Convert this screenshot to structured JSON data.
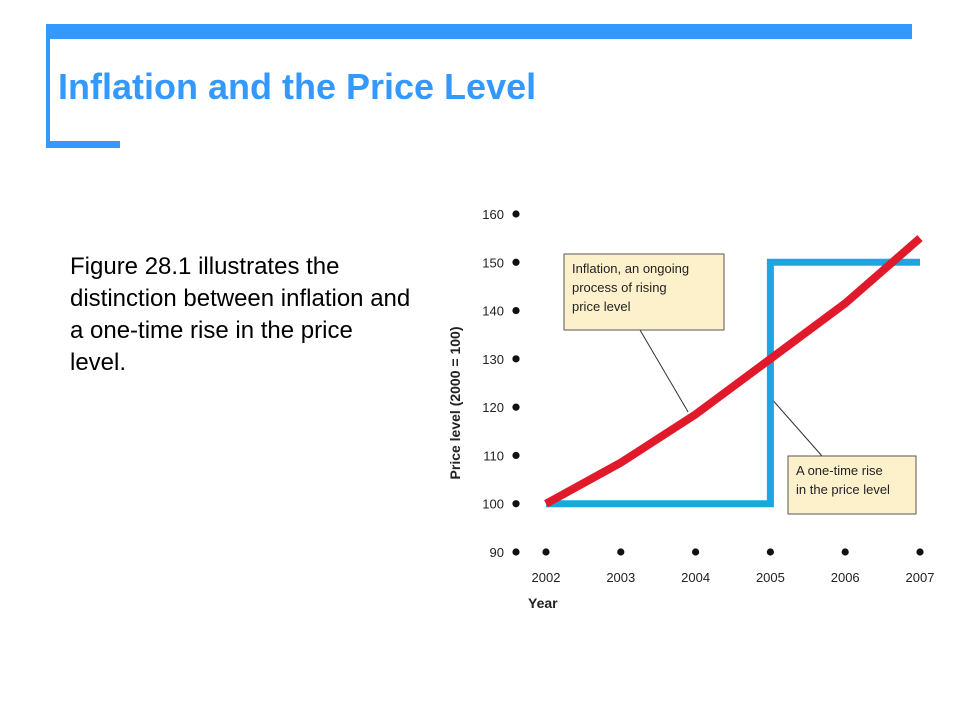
{
  "slide": {
    "title": "Inflation and the Price Level",
    "body": "Figure 28.1 illustrates the distinction between inflation and a one-time rise in the price level."
  },
  "colors": {
    "accent": "#3399ff",
    "inflation_line": "#e0192b",
    "one_time_line": "#1aa7e0",
    "callout_fill": "#fdf1cc"
  },
  "chart_data": {
    "type": "line",
    "xlabel": "Year",
    "ylabel": "Price level (2000 = 100)",
    "x_ticks": [
      2002,
      2003,
      2004,
      2005,
      2006,
      2007
    ],
    "y_ticks": [
      90,
      100,
      110,
      120,
      130,
      140,
      150,
      160
    ],
    "xlim": [
      2002,
      2007
    ],
    "ylim": [
      90,
      160
    ],
    "series": [
      {
        "color": "#e0192b",
        "x": [
          2002,
          2003,
          2004,
          2005,
          2006,
          2007
        ],
        "y": [
          100,
          108.5,
          118.5,
          130,
          141.5,
          155
        ]
      },
      {
        "color": "#1aa7e0",
        "x": [
          2002,
          2005,
          2005,
          2007
        ],
        "y": [
          100,
          100,
          150,
          150
        ]
      }
    ],
    "annotations": [
      {
        "text_lines": [
          "Inflation, an ongoing",
          "process of rising",
          "price level"
        ],
        "points_to": [
          2003.9,
          119
        ]
      },
      {
        "text_lines": [
          "A one-time rise",
          "in the price level"
        ],
        "points_to": [
          2005,
          122
        ]
      }
    ]
  }
}
